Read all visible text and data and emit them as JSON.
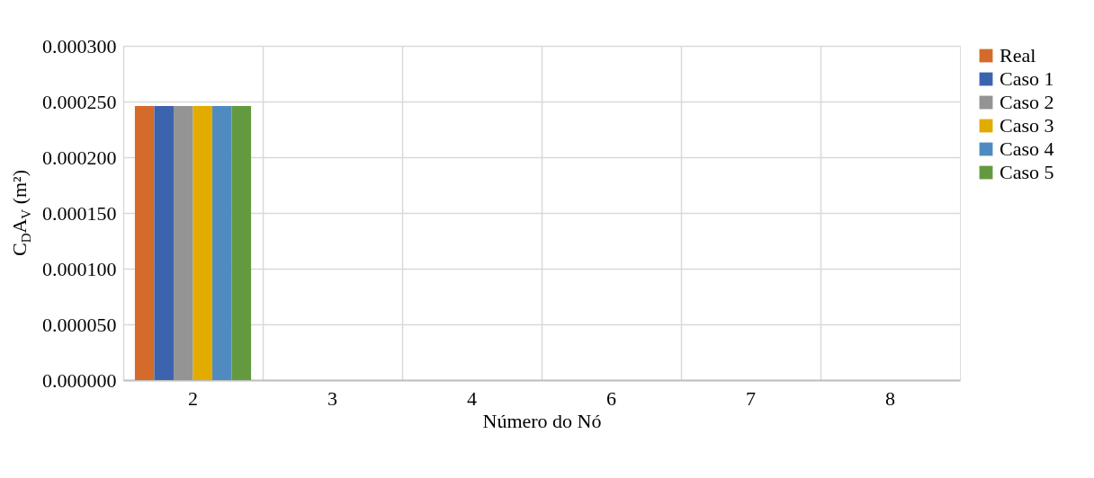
{
  "chart_data": {
    "type": "bar",
    "xlabel": "Número do Nó",
    "ylabel": "C$_{D}$A$_{V}$ (m²)",
    "categories": [
      "2",
      "3",
      "4",
      "6",
      "7",
      "8"
    ],
    "series": [
      {
        "name": "Real",
        "color": "#d46b2a",
        "values": [
          0.000246,
          0,
          0,
          0,
          0,
          0
        ]
      },
      {
        "name": "Caso 1",
        "color": "#3c63ae",
        "values": [
          0.000246,
          0,
          0,
          0,
          0,
          0
        ]
      },
      {
        "name": "Caso 2",
        "color": "#949494",
        "values": [
          0.000246,
          0,
          0,
          0,
          0,
          0
        ]
      },
      {
        "name": "Caso 3",
        "color": "#e2ab00",
        "values": [
          0.000246,
          0,
          0,
          0,
          0,
          0
        ]
      },
      {
        "name": "Caso 4",
        "color": "#4f8bc0",
        "values": [
          0.000246,
          0,
          0,
          0,
          0,
          0
        ]
      },
      {
        "name": "Caso 5",
        "color": "#639a3f",
        "values": [
          0.000246,
          0,
          0,
          0,
          0,
          0
        ]
      }
    ],
    "ylim": [
      0,
      0.0003
    ],
    "yticks": [
      {
        "value": 0,
        "label": "0.000000"
      },
      {
        "value": 5e-05,
        "label": "0.000050"
      },
      {
        "value": 0.0001,
        "label": "0.000100"
      },
      {
        "value": 0.00015,
        "label": "0.000150"
      },
      {
        "value": 0.0002,
        "label": "0.000200"
      },
      {
        "value": 0.00025,
        "label": "0.000250"
      },
      {
        "value": 0.0003,
        "label": "0.000300"
      }
    ],
    "grid": true,
    "legend": "right"
  }
}
